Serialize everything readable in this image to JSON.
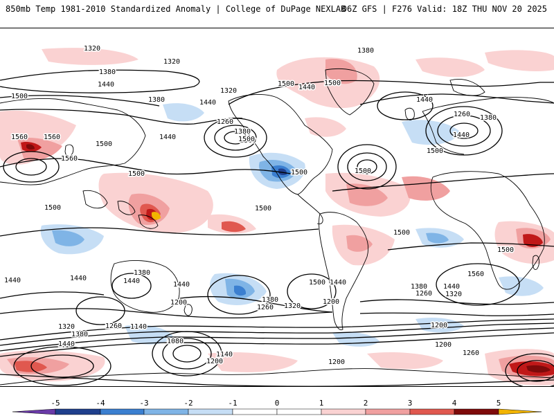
{
  "header": {
    "left_title": "850mb Temp 1981-2010 Standardized Anomaly | College of DuPage NEXLAB",
    "right_title": "06Z GFS | F276 Valid: 18Z THU NOV 20 2025"
  },
  "colorbar": {
    "ticks": [
      "-5",
      "-4",
      "-3",
      "-2",
      "-1",
      "0",
      "1",
      "2",
      "3",
      "4",
      "5"
    ],
    "colors": {
      "neg_5": "#6a3aa8",
      "neg_4": "#1f3f8c",
      "neg_3": "#3b7fd0",
      "neg_2": "#7fb4e6",
      "neg_1": "#c6def5",
      "zero": "#ffffff",
      "pos_1": "#fad2d2",
      "pos_2": "#f0a0a0",
      "pos_3": "#e0584f",
      "pos_4": "#c01818",
      "pos_5": "#7d0a0a",
      "max": "#f2b400"
    }
  },
  "contour_labels": [
    "1320",
    "1320",
    "1380",
    "1440",
    "1500",
    "1380",
    "1440",
    "1320",
    "1260",
    "1380",
    "1500",
    "1440",
    "1440",
    "1500",
    "1500",
    "1380",
    "1560",
    "1560",
    "1560",
    "1500",
    "1500",
    "1500",
    "1440",
    "1500",
    "1500",
    "1260",
    "1380",
    "1440",
    "1500",
    "1500",
    "1500",
    "1500",
    "1560",
    "1500",
    "1440",
    "1440",
    "1380",
    "1440",
    "1440",
    "1500",
    "1440",
    "1380",
    "1440",
    "1260",
    "1320",
    "1200",
    "1380",
    "1260",
    "1320",
    "1200",
    "1200",
    "1320",
    "1260",
    "1140",
    "1380",
    "1440",
    "1080",
    "1140",
    "1200",
    "1200",
    "1200",
    "1260"
  ]
}
